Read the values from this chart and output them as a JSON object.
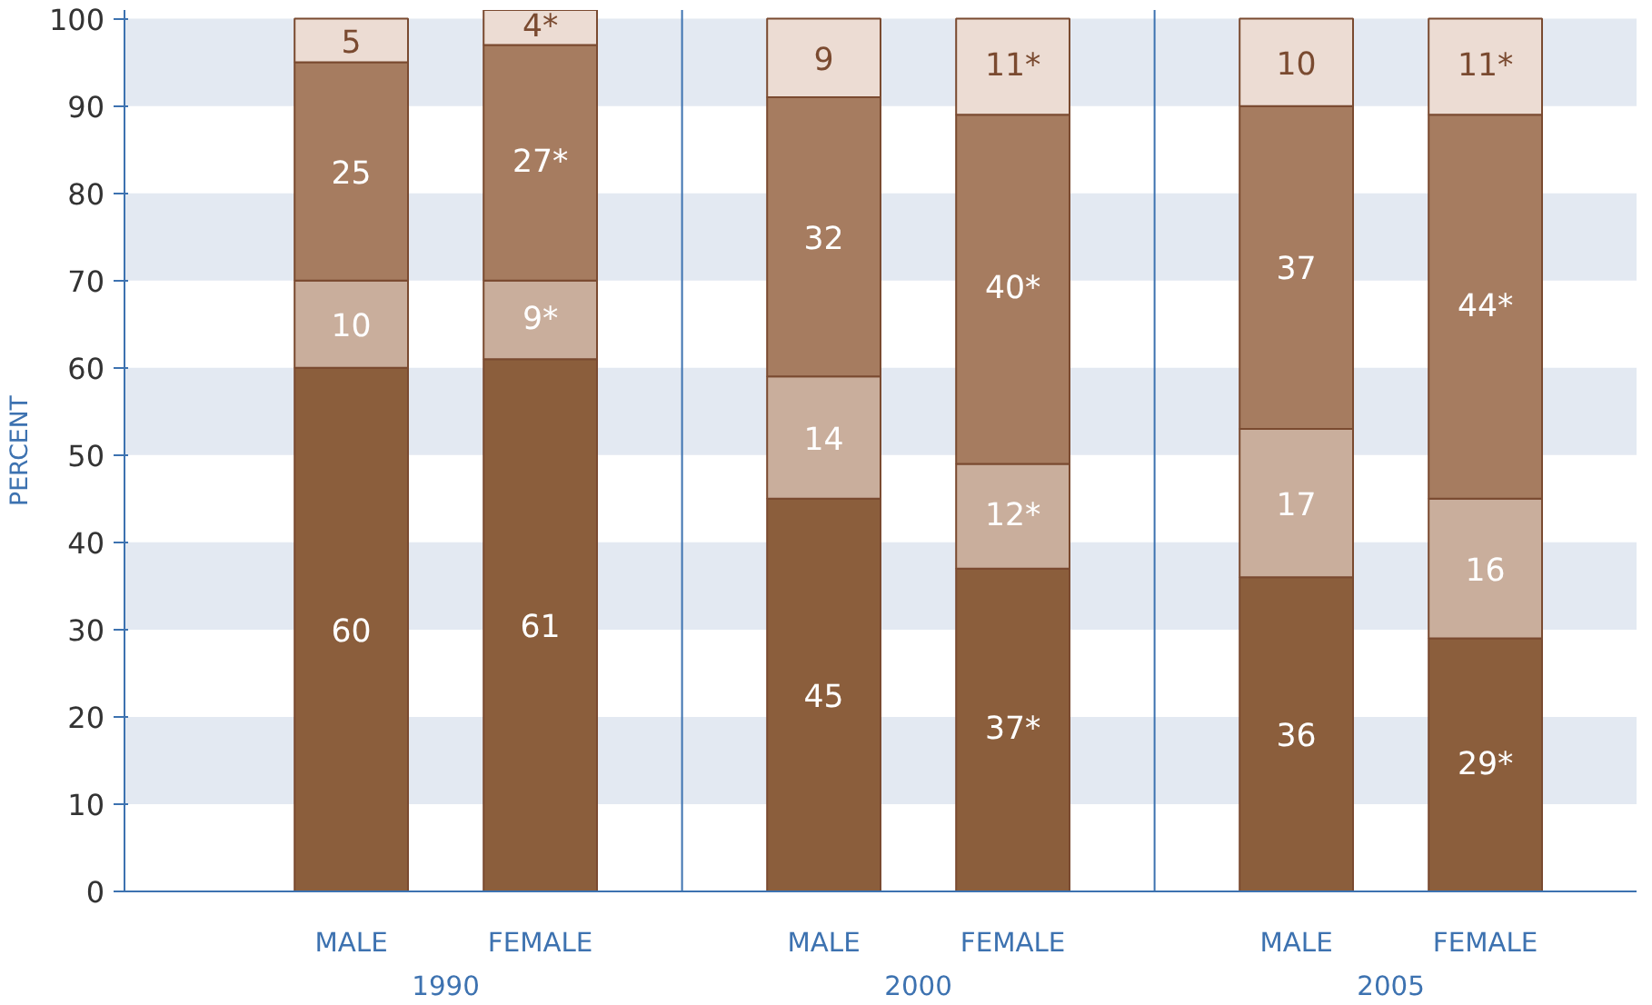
{
  "chart_data": {
    "type": "bar",
    "stacked": true,
    "ylabel": "PERCENT",
    "categories": [
      "MALE",
      "FEMALE",
      "MALE",
      "FEMALE",
      "MALE",
      "FEMALE"
    ],
    "annotations": [
      "1990",
      "2000",
      "2005"
    ],
    "series": [
      {
        "color": "#8b5e3c",
        "values": [
          60,
          61,
          45,
          37,
          36,
          29
        ],
        "value_labels": [
          "60",
          "61",
          "45",
          "37*",
          "36",
          "29*"
        ]
      },
      {
        "color": "#c9ae9c",
        "values": [
          10,
          9,
          14,
          12,
          17,
          16
        ],
        "value_labels": [
          "10",
          "9*",
          "14",
          "12*",
          "17",
          "16"
        ]
      },
      {
        "color": "#a67c60",
        "values": [
          25,
          27,
          32,
          40,
          37,
          44
        ],
        "value_labels": [
          "25",
          "27*",
          "32",
          "40*",
          "37",
          "44*"
        ]
      },
      {
        "color": "#ecdcd3",
        "values": [
          5,
          4,
          9,
          11,
          10,
          11
        ],
        "value_labels": [
          "5",
          "4*",
          "9",
          "11*",
          "10",
          "11*"
        ]
      }
    ],
    "ylim": [
      0,
      101
    ],
    "yticks": [
      0,
      10,
      20,
      30,
      40,
      50,
      60,
      70,
      80,
      90,
      100
    ],
    "grid": false,
    "bands": [
      {
        "axis": "y",
        "from": 10,
        "to": 20,
        "color": "#e3e9f2"
      },
      {
        "axis": "y",
        "from": 30,
        "to": 40,
        "color": "#e3e9f2"
      },
      {
        "axis": "y",
        "from": 50,
        "to": 60,
        "color": "#e3e9f2"
      },
      {
        "axis": "y",
        "from": 70,
        "to": 80,
        "color": "#e3e9f2"
      },
      {
        "axis": "y",
        "from": 90,
        "to": 100,
        "color": "#e3e9f2"
      }
    ]
  }
}
